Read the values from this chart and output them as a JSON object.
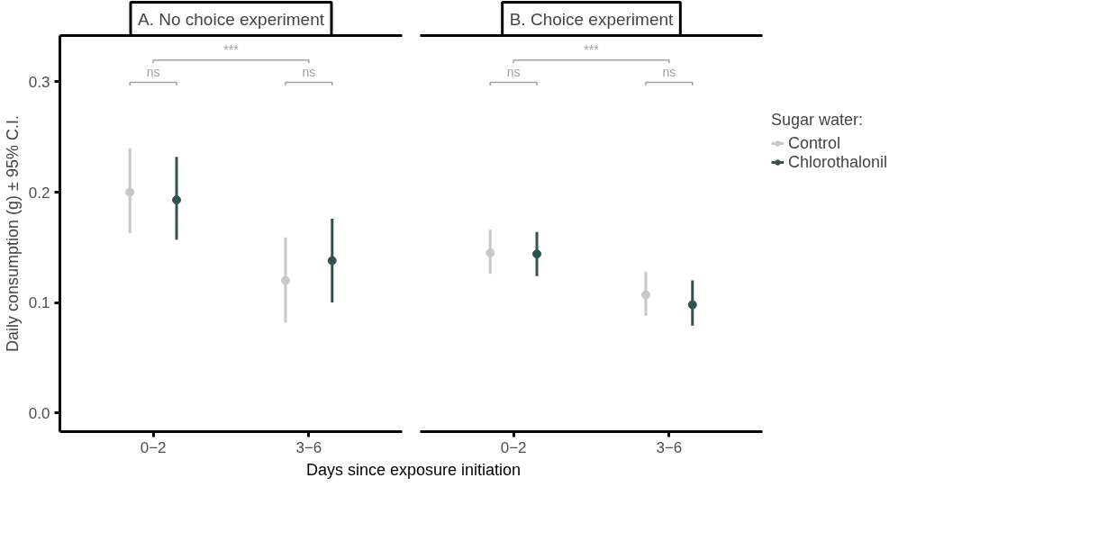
{
  "chart_data": [
    {
      "type": "scatter",
      "title": "A. No choice experiment",
      "ylabel": "Daily consumption (g) ± 95% C.I.",
      "xlabel": "Days since exposure initiation",
      "categories": [
        "0−2",
        "3−6"
      ],
      "ylim": [
        -0.017,
        0.342
      ],
      "yticks": [
        {
          "value": 0,
          "label": "0.0"
        },
        {
          "value": 0.1,
          "label": "0.1"
        },
        {
          "value": 0.2,
          "label": "0.2"
        },
        {
          "value": 0.3,
          "label": "0.3"
        }
      ],
      "marker": "circle",
      "grid": false,
      "legend": "right",
      "legend_title": "Sugar water:",
      "series": [
        {
          "name": "Control",
          "color": "#c8c8c8",
          "values": [
            0.2,
            0.12
          ],
          "errors": [
            [
              0.163,
              0.24
            ],
            [
              0.082,
              0.159
            ]
          ]
        },
        {
          "name": "Chlorothalonil",
          "color": "#2f5350",
          "values": [
            0.193,
            0.138
          ],
          "errors": [
            [
              0.157,
              0.232
            ],
            [
              0.1,
              0.176
            ]
          ]
        }
      ],
      "annotations": [
        "ns",
        "ns",
        "***"
      ]
    },
    {
      "type": "scatter",
      "title": "B. Choice experiment",
      "categories": [
        "0−2",
        "3−6"
      ],
      "ylim": [
        -0.017,
        0.342
      ],
      "tick_labels": "x",
      "marker": "circle",
      "grid": false,
      "series": [
        {
          "color": "#c8c8c8",
          "values": [
            0.145,
            0.107
          ],
          "errors": [
            [
              0.126,
              0.166
            ],
            [
              0.088,
              0.128
            ]
          ]
        },
        {
          "color": "#2f5350",
          "values": [
            0.144,
            0.098
          ],
          "errors": [
            [
              0.124,
              0.164
            ],
            [
              0.079,
              0.12
            ]
          ]
        }
      ],
      "annotations": [
        "ns",
        "ns",
        "***"
      ]
    }
  ]
}
